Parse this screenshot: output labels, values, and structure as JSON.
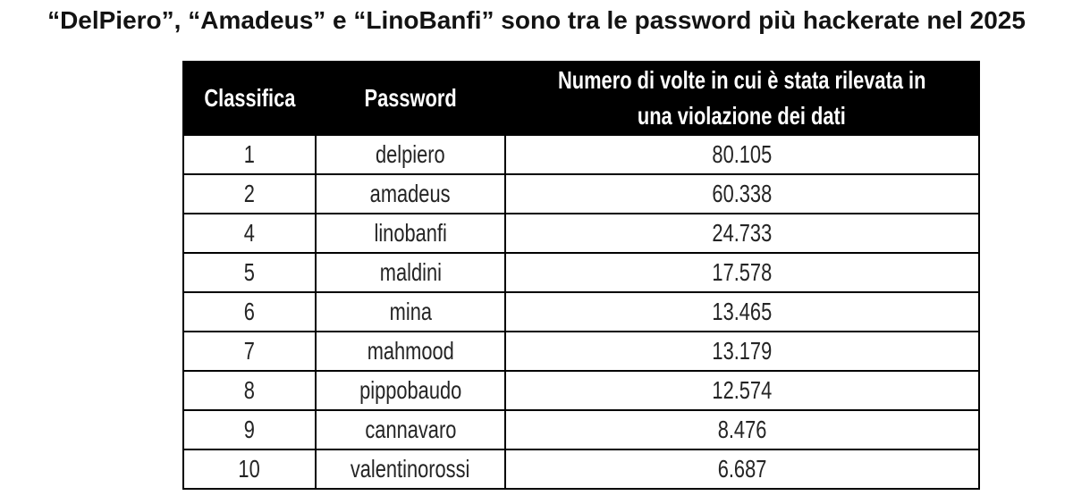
{
  "chart_data": {
    "type": "table",
    "title": "“DelPiero”, “Amadeus” e “LinoBanfi” sono tra le password più hackerate nel 2025",
    "columns": [
      {
        "label": "Classifica"
      },
      {
        "label": "Password"
      },
      {
        "label": "Numero di volte in cui è stata rilevata in una violazione dei dati",
        "lines": [
          "Numero di volte in cui è stata rilevata in",
          "una violazione dei dati"
        ]
      }
    ],
    "rows": [
      {
        "rank": "1",
        "password": "delpiero",
        "count": "80.105"
      },
      {
        "rank": "2",
        "password": "amadeus",
        "count": "60.338"
      },
      {
        "rank": "4",
        "password": "linobanfi",
        "count": "24.733"
      },
      {
        "rank": "5",
        "password": "maldini",
        "count": "17.578"
      },
      {
        "rank": "6",
        "password": "mina",
        "count": "13.465"
      },
      {
        "rank": "7",
        "password": "mahmood",
        "count": "13.179"
      },
      {
        "rank": "8",
        "password": "pippobaudo",
        "count": "12.574"
      },
      {
        "rank": "9",
        "password": "cannavaro",
        "count": "8.476"
      },
      {
        "rank": "10",
        "password": "valentinorossi",
        "count": "6.687"
      }
    ],
    "layout": {
      "header_bg": "#000000",
      "header_text_color": "#ffffff",
      "body_text_color": "#242424",
      "border_color": "#000000",
      "page_bg": "#ffffff"
    }
  }
}
